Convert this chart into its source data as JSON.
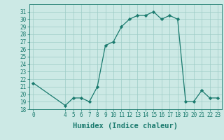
{
  "x": [
    0,
    4,
    5,
    6,
    7,
    8,
    9,
    10,
    11,
    12,
    13,
    14,
    15,
    16,
    17,
    18,
    19,
    20,
    21,
    22,
    23
  ],
  "y": [
    21.5,
    18.5,
    19.5,
    19.5,
    19,
    21,
    26.5,
    27,
    29,
    30,
    30.5,
    30.5,
    31,
    30,
    30.5,
    30,
    19,
    19,
    20.5,
    19.5,
    19.5
  ],
  "line_color": "#1a7a6e",
  "marker": "D",
  "marker_size": 2.2,
  "bg_color": "#cce9e5",
  "grid_color": "#9eccc6",
  "xlabel": "Humidex (Indice chaleur)",
  "xlim": [
    -0.5,
    23.5
  ],
  "ylim": [
    18,
    32
  ],
  "yticks": [
    18,
    19,
    20,
    21,
    22,
    23,
    24,
    25,
    26,
    27,
    28,
    29,
    30,
    31
  ],
  "xticks": [
    0,
    4,
    5,
    6,
    7,
    8,
    9,
    10,
    11,
    12,
    13,
    14,
    15,
    16,
    17,
    18,
    19,
    20,
    21,
    22,
    23
  ],
  "tick_fontsize": 5.5,
  "label_fontsize": 7.5
}
